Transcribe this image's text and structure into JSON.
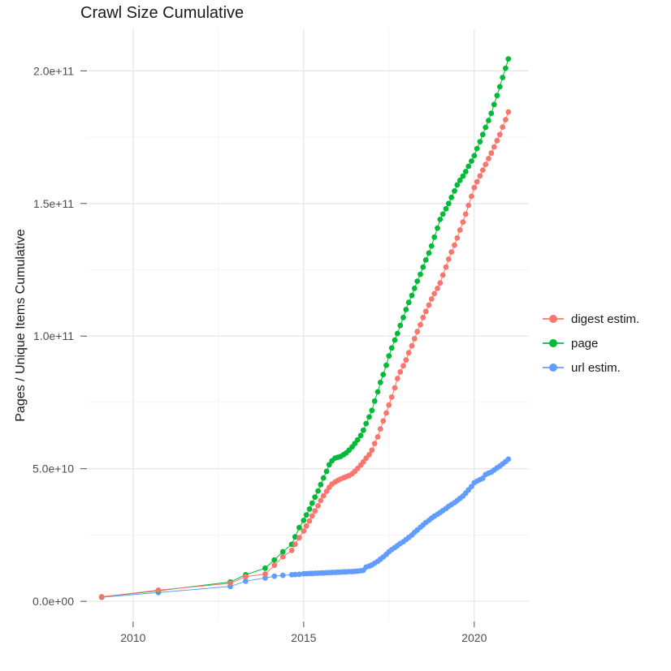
{
  "chart_data": {
    "type": "scatter",
    "title": "Crawl Size Cumulative",
    "xlabel": "",
    "ylabel": "Pages / Unique Items Cumulative",
    "values_unit": "billions (1e9) of pages / unique items, cumulative",
    "value_scale": 1000000000,
    "xlim": [
      2008.67,
      2021.6
    ],
    "ylim_billions": [
      -7.3,
      215.7
    ],
    "x_ticks": {
      "values": [
        2010,
        2015,
        2020
      ],
      "labels": [
        "2010",
        "2015",
        "2020"
      ]
    },
    "x_minor": [
      2012.5,
      2017.5
    ],
    "y_ticks": {
      "values": [
        0,
        50,
        100,
        150,
        200
      ],
      "labels": [
        "0.0e+00",
        "5.0e+10",
        "1.0e+11",
        "1.5e+11",
        "2.0e+11"
      ]
    },
    "y_minor": [
      25,
      75,
      125,
      175
    ],
    "grid": true,
    "legend_position": "right",
    "x": [
      2009.08,
      2010.74,
      2012.85,
      2013.3,
      2013.87,
      2014.14,
      2014.39,
      2014.65,
      2014.75,
      2014.87,
      2015.0,
      2015.08,
      2015.17,
      2015.25,
      2015.33,
      2015.42,
      2015.5,
      2015.58,
      2015.67,
      2015.75,
      2015.83,
      2015.92,
      2016.0,
      2016.08,
      2016.17,
      2016.25,
      2016.33,
      2016.42,
      2016.5,
      2016.58,
      2016.67,
      2016.75,
      2016.83,
      2016.92,
      2017.0,
      2017.08,
      2017.17,
      2017.25,
      2017.33,
      2017.42,
      2017.5,
      2017.58,
      2017.67,
      2017.75,
      2017.83,
      2017.92,
      2018.0,
      2018.08,
      2018.17,
      2018.25,
      2018.33,
      2018.42,
      2018.5,
      2018.58,
      2018.67,
      2018.75,
      2018.83,
      2018.92,
      2019.0,
      2019.08,
      2019.17,
      2019.25,
      2019.33,
      2019.42,
      2019.5,
      2019.58,
      2019.67,
      2019.75,
      2019.83,
      2019.92,
      2020.0,
      2020.08,
      2020.17,
      2020.25,
      2020.33,
      2020.42,
      2020.5,
      2020.58,
      2020.67,
      2020.75,
      2020.83,
      2020.92,
      2021.0
    ],
    "series": [
      {
        "name": "digest estim.",
        "color": "#F8766D",
        "values_billions": [
          1.7,
          4.2,
          6.8,
          9.3,
          10.3,
          13.6,
          16.8,
          19.2,
          21.5,
          24.0,
          26.5,
          28.4,
          30.3,
          32.2,
          34.1,
          36.0,
          38.0,
          39.8,
          41.5,
          43.0,
          44.2,
          45.0,
          45.6,
          46.1,
          46.6,
          47.0,
          47.4,
          48.1,
          49.0,
          50.1,
          51.3,
          52.6,
          54.0,
          55.3,
          57.0,
          59.5,
          62.0,
          65.0,
          68.0,
          71.0,
          74.0,
          77.0,
          80.5,
          84.0,
          86.5,
          88.8,
          91.0,
          93.7,
          96.3,
          99.0,
          101.7,
          104.3,
          107.0,
          109.3,
          111.7,
          114.0,
          116.0,
          118.0,
          120.0,
          123.0,
          126.0,
          129.0,
          131.7,
          134.3,
          137.0,
          140.0,
          143.0,
          146.0,
          149.3,
          152.7,
          156.0,
          158.2,
          160.4,
          162.6,
          164.7,
          166.9,
          169.0,
          171.3,
          173.7,
          176.0,
          178.8,
          181.6,
          184.5
        ]
      },
      {
        "name": "page",
        "color": "#00BA38",
        "values_billions": [
          1.7,
          4.0,
          7.3,
          10.0,
          12.5,
          15.6,
          18.7,
          21.5,
          24.3,
          27.8,
          30.5,
          32.6,
          34.8,
          37.0,
          39.3,
          41.6,
          44.0,
          46.5,
          49.0,
          51.5,
          53.0,
          54.0,
          54.3,
          54.6,
          55.3,
          56.0,
          57.0,
          58.2,
          59.5,
          60.9,
          62.5,
          64.5,
          67.0,
          69.5,
          72.0,
          75.5,
          79.0,
          82.5,
          85.5,
          89.0,
          92.5,
          95.5,
          98.5,
          101.0,
          104.0,
          107.0,
          110.0,
          112.7,
          115.3,
          118.0,
          120.7,
          123.3,
          126.0,
          128.7,
          131.3,
          134.0,
          137.3,
          140.7,
          144.0,
          146.0,
          148.0,
          150.0,
          152.3,
          154.7,
          157.0,
          158.7,
          160.3,
          162.0,
          164.0,
          166.0,
          168.0,
          170.7,
          173.3,
          176.0,
          178.7,
          181.3,
          184.0,
          187.3,
          190.7,
          194.0,
          197.5,
          201.0,
          204.5
        ]
      },
      {
        "name": "url estim.",
        "color": "#619CFF",
        "values_billions": [
          1.5,
          3.3,
          5.6,
          7.6,
          8.8,
          9.5,
          9.8,
          10.0,
          10.1,
          10.2,
          10.4,
          10.4,
          10.5,
          10.5,
          10.6,
          10.6,
          10.7,
          10.7,
          10.8,
          10.8,
          10.9,
          10.9,
          11.0,
          11.0,
          11.1,
          11.1,
          11.2,
          11.2,
          11.3,
          11.4,
          11.5,
          11.7,
          12.9,
          13.3,
          13.7,
          14.4,
          15.1,
          15.9,
          16.7,
          17.7,
          18.7,
          19.5,
          20.3,
          21.0,
          21.8,
          22.5,
          23.3,
          24.1,
          25.0,
          26.0,
          26.9,
          27.9,
          28.8,
          29.7,
          30.5,
          31.4,
          32.1,
          32.8,
          33.5,
          34.2,
          35.0,
          35.8,
          36.5,
          37.2,
          38.0,
          38.8,
          39.7,
          40.8,
          42.0,
          43.3,
          44.7,
          45.3,
          45.9,
          46.4,
          47.8,
          48.3,
          48.7,
          49.5,
          50.3,
          51.0,
          51.8,
          52.7,
          53.6
        ]
      }
    ]
  }
}
